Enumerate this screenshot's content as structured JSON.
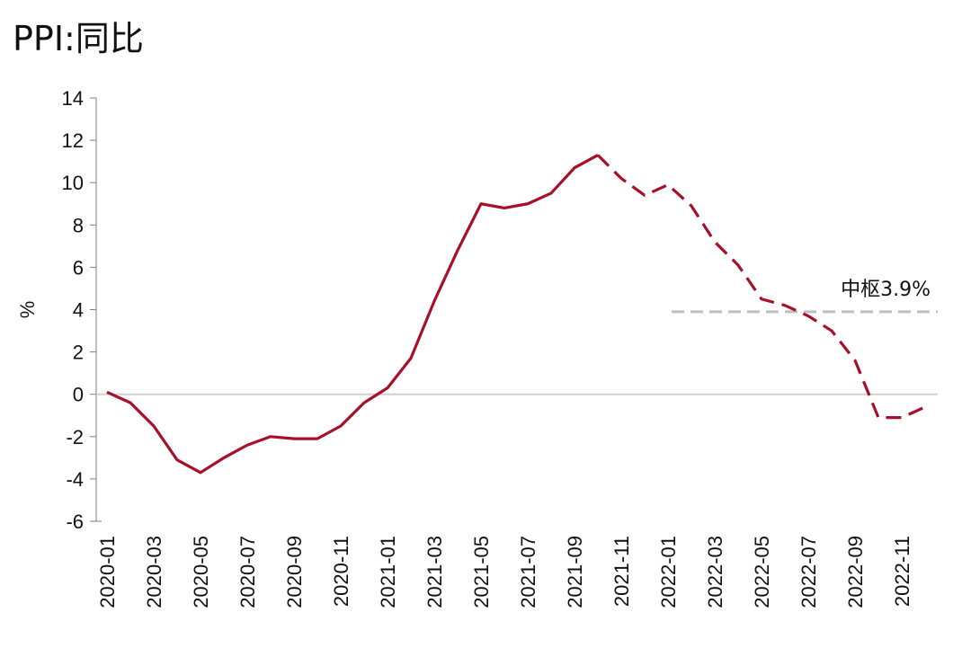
{
  "chart_data": {
    "type": "line",
    "title": "PPI:同比",
    "ylabel": "%",
    "xlabel": "",
    "ylim": [
      -6,
      14
    ],
    "yticks": [
      14,
      12,
      10,
      8,
      6,
      4,
      2,
      0,
      -2,
      -4,
      -6
    ],
    "x_tick_labels": [
      "2020-01",
      "2020-03",
      "2020-05",
      "2020-07",
      "2020-09",
      "2020-11",
      "2021-01",
      "2021-03",
      "2021-05",
      "2021-07",
      "2021-09",
      "2021-11",
      "2022-01",
      "2022-03",
      "2022-05",
      "2022-07",
      "2022-09",
      "2022-11"
    ],
    "categories": [
      "2020-01",
      "2020-02",
      "2020-03",
      "2020-04",
      "2020-05",
      "2020-06",
      "2020-07",
      "2020-08",
      "2020-09",
      "2020-10",
      "2020-11",
      "2020-12",
      "2021-01",
      "2021-02",
      "2021-03",
      "2021-04",
      "2021-05",
      "2021-06",
      "2021-07",
      "2021-08",
      "2021-09",
      "2021-10",
      "2021-11",
      "2021-12",
      "2022-01",
      "2022-02",
      "2022-03",
      "2022-04",
      "2022-05",
      "2022-06",
      "2022-07",
      "2022-08",
      "2022-09",
      "2022-10",
      "2022-11",
      "2022-12"
    ],
    "series": [
      {
        "style": "solid",
        "color": "#A8102A",
        "values": [
          0.1,
          -0.4,
          -1.5,
          -3.1,
          -3.7,
          -3.0,
          -2.4,
          -2.0,
          -2.1,
          -2.1,
          -1.5,
          -0.4,
          0.3,
          1.7,
          4.4,
          6.8,
          9.0,
          8.8,
          9.0,
          9.5,
          10.7,
          11.3,
          null,
          null,
          null,
          null,
          null,
          null,
          null,
          null,
          null,
          null,
          null,
          null,
          null,
          null
        ]
      },
      {
        "style": "dashed",
        "color": "#A8102A",
        "values": [
          null,
          null,
          null,
          null,
          null,
          null,
          null,
          null,
          null,
          null,
          null,
          null,
          null,
          null,
          null,
          null,
          null,
          null,
          null,
          null,
          null,
          11.3,
          10.2,
          9.4,
          9.9,
          8.9,
          7.2,
          6.1,
          4.5,
          4.2,
          3.7,
          3.0,
          1.6,
          -1.1,
          -1.1,
          -0.6
        ]
      }
    ],
    "reference_line": {
      "label": "中枢3.9%",
      "value": 3.9,
      "from": "2022-01",
      "to": "2022-12",
      "color": "#BFBFBF"
    },
    "zero_line_color": "#D0D0D0",
    "grid": false,
    "legend": "none"
  }
}
